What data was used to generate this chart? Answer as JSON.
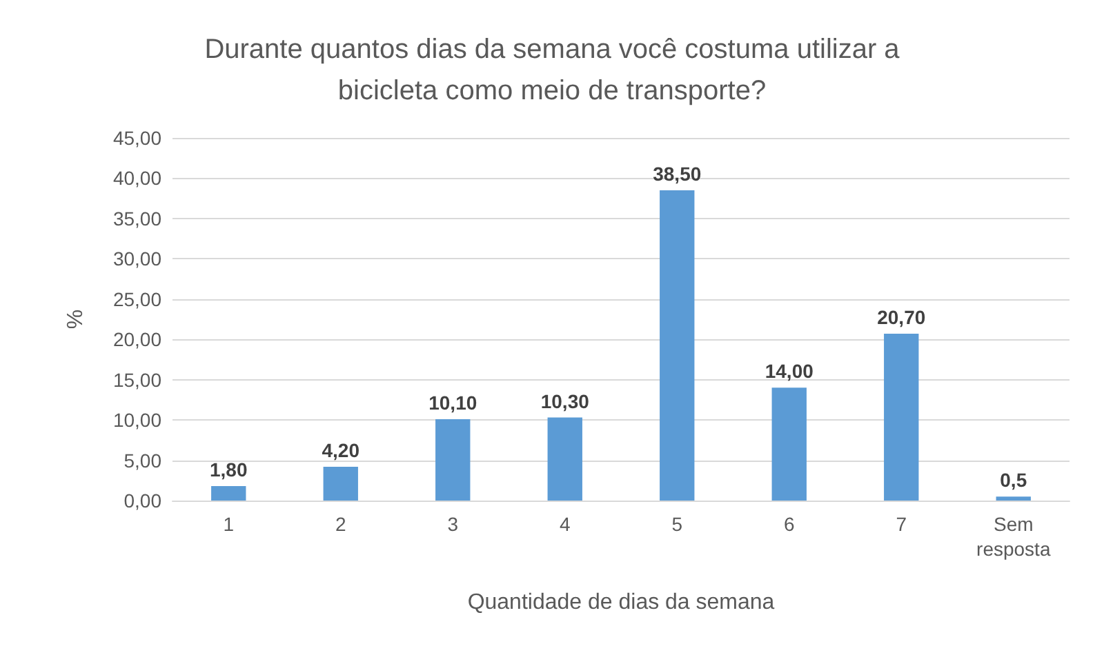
{
  "chart_data": {
    "type": "bar",
    "title": "Durante quantos dias da semana você costuma utilizar a\nbicicleta como meio de transporte?",
    "xlabel": "Quantidade de dias da semana",
    "ylabel": "%",
    "categories": [
      "1",
      "2",
      "3",
      "4",
      "5",
      "6",
      "7",
      "Sem\nresposta"
    ],
    "values": [
      1.8,
      4.2,
      10.1,
      10.3,
      38.5,
      14.0,
      20.7,
      0.5
    ],
    "value_labels": [
      "1,80",
      "4,20",
      "10,10",
      "10,30",
      "38,50",
      "14,00",
      "20,70",
      "0,5"
    ],
    "color": "#5b9bd5",
    "ylim": [
      0,
      45
    ],
    "yticks": [
      {
        "value": 0,
        "label": "0,00"
      },
      {
        "value": 5,
        "label": "5,00"
      },
      {
        "value": 10,
        "label": "10,00"
      },
      {
        "value": 15,
        "label": "15,00"
      },
      {
        "value": 20,
        "label": "20,00"
      },
      {
        "value": 25,
        "label": "25,00"
      },
      {
        "value": 30,
        "label": "30,00"
      },
      {
        "value": 35,
        "label": "35,00"
      },
      {
        "value": 40,
        "label": "40,00"
      },
      {
        "value": 45,
        "label": "45,00"
      }
    ],
    "grid": "y"
  }
}
